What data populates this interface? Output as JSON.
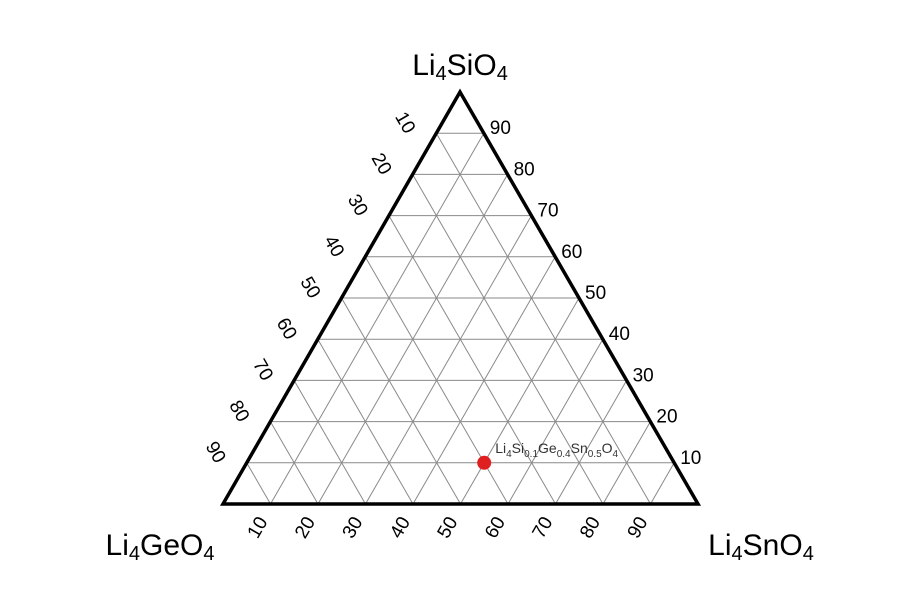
{
  "chart_data": {
    "type": "scatter",
    "subtype": "ternary",
    "vertices": {
      "top": {
        "base": "Li",
        "sub1": "4",
        "base2": "SiO",
        "sub2": "4"
      },
      "left": {
        "base": "Li",
        "sub1": "4",
        "base2": "GeO",
        "sub2": "4"
      },
      "right": {
        "base": "Li",
        "sub1": "4",
        "base2": "SnO",
        "sub2": "4"
      }
    },
    "grid": true,
    "grid_step": 10,
    "axes": {
      "left_edge_ticks": [
        "10",
        "20",
        "30",
        "40",
        "50",
        "60",
        "70",
        "80",
        "90"
      ],
      "right_edge_ticks": [
        "90",
        "80",
        "70",
        "60",
        "50",
        "40",
        "30",
        "20",
        "10"
      ],
      "bottom_edge_ticks": [
        "10",
        "20",
        "30",
        "40",
        "50",
        "60",
        "70",
        "80",
        "90"
      ]
    },
    "points": [
      {
        "components": {
          "Li4SiO4": 0.1,
          "Li4GeO4": 0.4,
          "Li4SnO4": 0.5
        },
        "color": "#e02020",
        "label_parts": [
          {
            "t": "Li",
            "sub": false
          },
          {
            "t": "4",
            "sub": true
          },
          {
            "t": "Si",
            "sub": false
          },
          {
            "t": "0.1",
            "sub": true
          },
          {
            "t": "Ge",
            "sub": false
          },
          {
            "t": "0.4",
            "sub": true
          },
          {
            "t": "Sn",
            "sub": false
          },
          {
            "t": "0.5",
            "sub": true
          },
          {
            "t": "O",
            "sub": false
          },
          {
            "t": "4",
            "sub": true
          }
        ]
      }
    ]
  }
}
